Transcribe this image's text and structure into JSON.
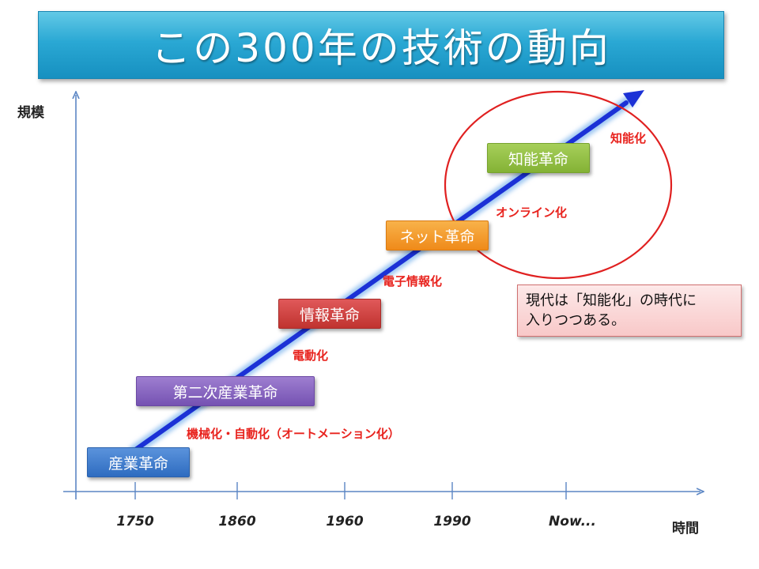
{
  "title": "この300年の技術の動向",
  "axes": {
    "y_label": "規模",
    "x_label": "時間",
    "ticks": [
      "1750",
      "1860",
      "1960",
      "1990",
      "Now..."
    ]
  },
  "phases": [
    {
      "label": "産業革命",
      "color": "#2e6cc0"
    },
    {
      "label": "第二次産業革命",
      "color": "#7552b2"
    },
    {
      "label": "情報革命",
      "color": "#c0332f"
    },
    {
      "label": "ネット革命",
      "color": "#ef8a1a"
    },
    {
      "label": "知能革命",
      "color": "#84b235"
    }
  ],
  "steps": [
    "機械化・自動化（オートメーション化）",
    "電動化",
    "電子情報化",
    "オンライン化",
    "知能化"
  ],
  "note": {
    "line1": "現代は「知能化」の時代に",
    "line2": "入りつつある。"
  },
  "colors": {
    "arrow": "#1b31d6",
    "highlight_circle": "#e02020",
    "step_text": "#e8231e",
    "axis": "#5b86c4"
  }
}
